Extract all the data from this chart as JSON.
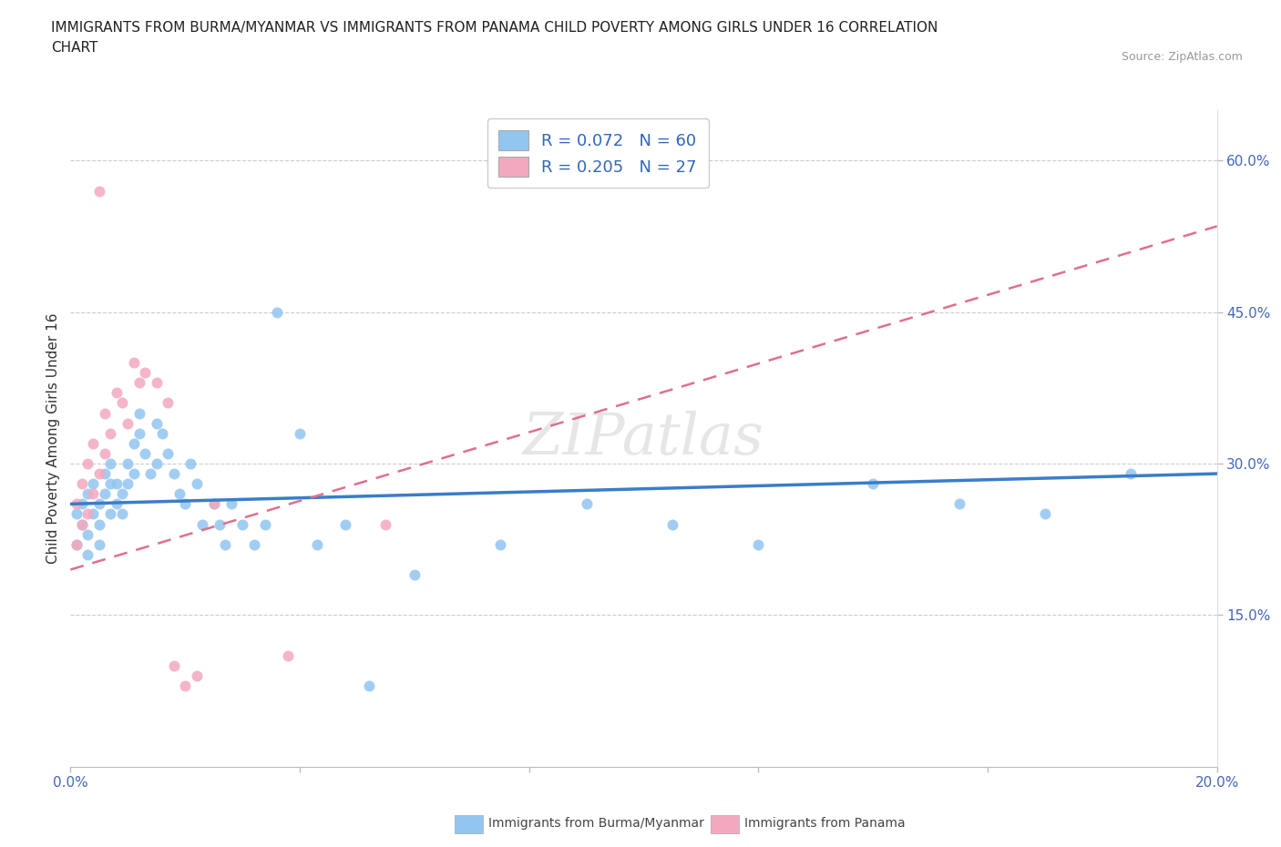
{
  "title": "IMMIGRANTS FROM BURMA/MYANMAR VS IMMIGRANTS FROM PANAMA CHILD POVERTY AMONG GIRLS UNDER 16 CORRELATION\nCHART",
  "source_text": "Source: ZipAtlas.com",
  "ylabel": "Child Poverty Among Girls Under 16",
  "xlim": [
    0.0,
    0.2
  ],
  "ylim": [
    0.0,
    0.65
  ],
  "r1": 0.072,
  "n1": 60,
  "r2": 0.205,
  "n2": 27,
  "color_burma": "#92C5F0",
  "color_panama": "#F4A8C0",
  "legend_label1": "Immigrants from Burma/Myanmar",
  "legend_label2": "Immigrants from Panama",
  "burma_line_color": "#3A7DC9",
  "panama_line_color": "#E0708A",
  "burma_x": [
    0.001,
    0.001,
    0.002,
    0.002,
    0.003,
    0.003,
    0.003,
    0.004,
    0.004,
    0.005,
    0.005,
    0.005,
    0.006,
    0.006,
    0.007,
    0.007,
    0.007,
    0.008,
    0.008,
    0.009,
    0.009,
    0.01,
    0.01,
    0.011,
    0.011,
    0.012,
    0.012,
    0.013,
    0.014,
    0.015,
    0.015,
    0.016,
    0.017,
    0.018,
    0.019,
    0.02,
    0.021,
    0.022,
    0.023,
    0.025,
    0.026,
    0.027,
    0.028,
    0.03,
    0.032,
    0.034,
    0.036,
    0.04,
    0.043,
    0.048,
    0.052,
    0.06,
    0.075,
    0.09,
    0.105,
    0.12,
    0.14,
    0.155,
    0.17,
    0.185
  ],
  "burma_y": [
    0.25,
    0.22,
    0.24,
    0.26,
    0.27,
    0.23,
    0.21,
    0.25,
    0.28,
    0.26,
    0.24,
    0.22,
    0.29,
    0.27,
    0.3,
    0.28,
    0.25,
    0.28,
    0.26,
    0.27,
    0.25,
    0.3,
    0.28,
    0.32,
    0.29,
    0.35,
    0.33,
    0.31,
    0.29,
    0.34,
    0.3,
    0.33,
    0.31,
    0.29,
    0.27,
    0.26,
    0.3,
    0.28,
    0.24,
    0.26,
    0.24,
    0.22,
    0.26,
    0.24,
    0.22,
    0.24,
    0.45,
    0.33,
    0.22,
    0.24,
    0.08,
    0.19,
    0.22,
    0.26,
    0.24,
    0.22,
    0.28,
    0.26,
    0.25,
    0.29
  ],
  "panama_x": [
    0.001,
    0.001,
    0.002,
    0.002,
    0.003,
    0.003,
    0.004,
    0.004,
    0.005,
    0.006,
    0.006,
    0.007,
    0.008,
    0.009,
    0.01,
    0.011,
    0.012,
    0.013,
    0.015,
    0.017,
    0.018,
    0.02,
    0.022,
    0.025,
    0.038,
    0.055,
    0.005
  ],
  "panama_y": [
    0.22,
    0.26,
    0.24,
    0.28,
    0.25,
    0.3,
    0.27,
    0.32,
    0.29,
    0.31,
    0.35,
    0.33,
    0.37,
    0.36,
    0.34,
    0.4,
    0.38,
    0.39,
    0.38,
    0.36,
    0.1,
    0.08,
    0.09,
    0.26,
    0.11,
    0.24,
    0.57
  ],
  "burma_line_x": [
    0.0,
    0.2
  ],
  "burma_line_y": [
    0.26,
    0.29
  ],
  "panama_line_x": [
    0.0,
    0.2
  ],
  "panama_line_y": [
    0.195,
    0.535
  ]
}
